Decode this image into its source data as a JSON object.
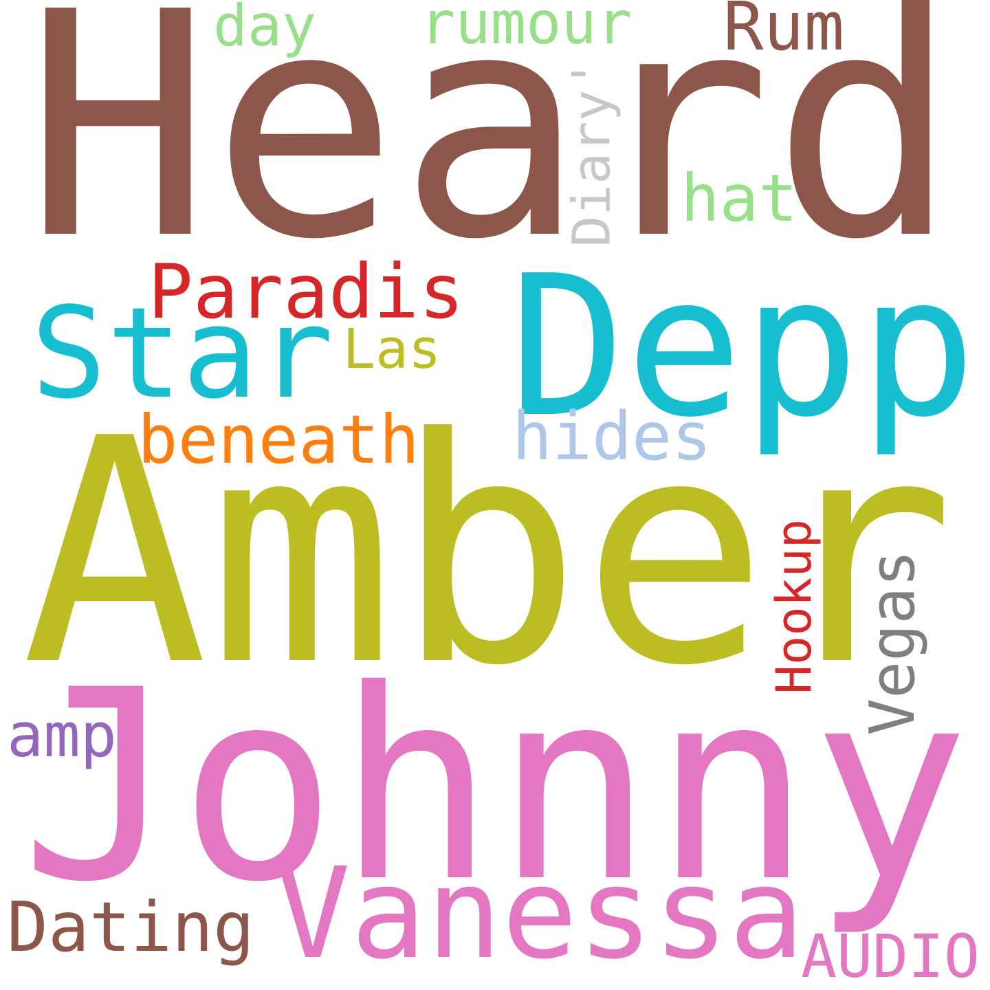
{
  "words": [
    {
      "id": "heard",
      "text": "Heard",
      "color": "#8c564b",
      "orientation": "horizontal"
    },
    {
      "id": "depp",
      "text": "Depp",
      "color": "#17becf",
      "orientation": "horizontal"
    },
    {
      "id": "star",
      "text": "Star",
      "color": "#17becf",
      "orientation": "horizontal"
    },
    {
      "id": "amber",
      "text": "Amber",
      "color": "#bcbd22",
      "orientation": "horizontal"
    },
    {
      "id": "johnny",
      "text": "Johnny",
      "color": "#e377c2",
      "orientation": "horizontal"
    },
    {
      "id": "vanessa",
      "text": "Vanessa",
      "color": "#e377c2",
      "orientation": "horizontal"
    },
    {
      "id": "dating",
      "text": "Dating",
      "color": "#8c564b",
      "orientation": "horizontal"
    },
    {
      "id": "audio",
      "text": "AUDIO",
      "color": "#e377c2",
      "orientation": "horizontal"
    },
    {
      "id": "amp",
      "text": "amp",
      "color": "#9467bd",
      "orientation": "horizontal"
    },
    {
      "id": "paradis",
      "text": "Paradis",
      "color": "#d62728",
      "orientation": "horizontal"
    },
    {
      "id": "las",
      "text": "Las",
      "color": "#bcbd22",
      "orientation": "horizontal"
    },
    {
      "id": "beneath",
      "text": "beneath",
      "color": "#ff7f0e",
      "orientation": "horizontal"
    },
    {
      "id": "hides",
      "text": "hides",
      "color": "#aec7e8",
      "orientation": "horizontal"
    },
    {
      "id": "hat",
      "text": "hat",
      "color": "#98df8a",
      "orientation": "horizontal"
    },
    {
      "id": "day",
      "text": "day",
      "color": "#98df8a",
      "orientation": "horizontal"
    },
    {
      "id": "rumour",
      "text": "rumour",
      "color": "#98df8a",
      "orientation": "horizontal"
    },
    {
      "id": "rum",
      "text": "Rum",
      "color": "#8c564b",
      "orientation": "horizontal"
    },
    {
      "id": "diary",
      "text": "Diary'",
      "color": "#c7c7c7",
      "orientation": "vertical"
    },
    {
      "id": "hookup",
      "text": "Hookup",
      "color": "#d62728",
      "orientation": "vertical"
    },
    {
      "id": "vegas",
      "text": "Vegas",
      "color": "#7f7f7f",
      "orientation": "vertical"
    }
  ]
}
